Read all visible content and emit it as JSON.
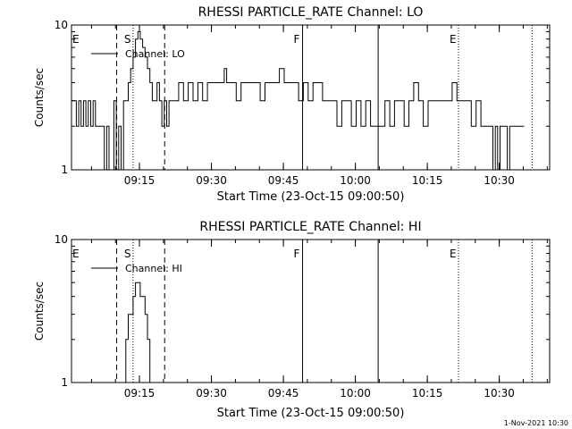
{
  "footer": {
    "stamp": "1-Nov-2021 10:30"
  },
  "chart_data": [
    {
      "type": "line",
      "title": "RHESSI PARTICLE_RATE Channel: LO",
      "xlabel": "Start Time (23-Oct-15 09:00:50)",
      "ylabel": "Counts/sec",
      "y_scale": "log",
      "ylim": [
        1,
        10
      ],
      "xlim": [
        "09:00:50",
        "10:40:30"
      ],
      "ytick_labels": [
        {
          "value": 10,
          "label": "10"
        },
        {
          "value": 1,
          "label": "1"
        }
      ],
      "xtick_labels": [
        {
          "time": "09:15",
          "label": "09:15"
        },
        {
          "time": "09:30",
          "label": "09:30"
        },
        {
          "time": "09:45",
          "label": "09:45"
        },
        {
          "time": "10:00",
          "label": "10:00"
        },
        {
          "time": "10:15",
          "label": "10:15"
        },
        {
          "time": "10:30",
          "label": "10:30"
        }
      ],
      "legend": {
        "placement": "top-left",
        "entries": [
          "Channel: LO"
        ]
      },
      "markers": [
        {
          "time": "09:10:15",
          "label": "",
          "style": "dashed"
        },
        {
          "time": "09:13:40",
          "label": "S",
          "style": "dotted"
        },
        {
          "time": "09:20:15",
          "label": "",
          "style": "dashed"
        },
        {
          "time": "09:49:00",
          "label": "F",
          "style": "solid"
        },
        {
          "time": "10:04:45",
          "label": "",
          "style": "solid"
        },
        {
          "time": "10:21:30",
          "label": "E",
          "style": "dotted"
        },
        {
          "time": "10:36:50",
          "label": "",
          "style": "dotted"
        }
      ],
      "corner_label": "E",
      "series": [
        {
          "points": [
            [
              "09:00:50",
              3
            ],
            [
              "09:01:50",
              2
            ],
            [
              "09:02:20",
              3
            ],
            [
              "09:02:50",
              2
            ],
            [
              "09:03:20",
              3
            ],
            [
              "09:03:50",
              2
            ],
            [
              "09:04:20",
              3
            ],
            [
              "09:04:50",
              2
            ],
            [
              "09:05:20",
              3
            ],
            [
              "09:05:50",
              2
            ],
            [
              "09:07:10",
              2
            ],
            [
              "09:07:40",
              1
            ],
            [
              "09:08:10",
              2
            ],
            [
              "09:08:40",
              1
            ],
            [
              "09:09:40",
              3
            ],
            [
              "09:10:10",
              1
            ],
            [
              "09:10:40",
              2
            ],
            [
              "09:11:10",
              1
            ],
            [
              "09:11:40",
              3
            ],
            [
              "09:12:40",
              4
            ],
            [
              "09:13:10",
              5
            ],
            [
              "09:13:40",
              6
            ],
            [
              "09:14:10",
              8
            ],
            [
              "09:14:40",
              9
            ],
            [
              "09:15:10",
              8
            ],
            [
              "09:15:40",
              7
            ],
            [
              "09:16:10",
              6
            ],
            [
              "09:16:40",
              5
            ],
            [
              "09:17:10",
              4
            ],
            [
              "09:17:40",
              3
            ],
            [
              "09:18:10",
              3
            ],
            [
              "09:18:40",
              4
            ],
            [
              "09:19:10",
              3
            ],
            [
              "09:19:40",
              2
            ],
            [
              "09:20:10",
              3
            ],
            [
              "09:20:40",
              2
            ],
            [
              "09:21:10",
              3
            ],
            [
              "09:22:10",
              3
            ],
            [
              "09:23:10",
              4
            ],
            [
              "09:24:10",
              3
            ],
            [
              "09:25:10",
              4
            ],
            [
              "09:26:10",
              3
            ],
            [
              "09:27:10",
              4
            ],
            [
              "09:28:10",
              3
            ],
            [
              "09:29:10",
              4
            ],
            [
              "09:30:10",
              4
            ],
            [
              "09:31:10",
              4
            ],
            [
              "09:32:10",
              4
            ],
            [
              "09:32:40",
              5
            ],
            [
              "09:33:10",
              4
            ],
            [
              "09:34:10",
              4
            ],
            [
              "09:35:10",
              3
            ],
            [
              "09:36:10",
              4
            ],
            [
              "09:37:10",
              4
            ],
            [
              "09:38:10",
              4
            ],
            [
              "09:39:10",
              4
            ],
            [
              "09:40:10",
              3
            ],
            [
              "09:41:10",
              4
            ],
            [
              "09:42:10",
              4
            ],
            [
              "09:43:10",
              4
            ],
            [
              "09:44:10",
              5
            ],
            [
              "09:45:10",
              4
            ],
            [
              "09:46:10",
              4
            ],
            [
              "09:47:10",
              4
            ],
            [
              "09:48:10",
              3
            ],
            [
              "09:49:10",
              4
            ],
            [
              "09:50:10",
              3
            ],
            [
              "09:51:10",
              4
            ],
            [
              "09:52:10",
              4
            ],
            [
              "09:53:10",
              3
            ],
            [
              "09:54:10",
              3
            ],
            [
              "09:55:10",
              3
            ],
            [
              "09:56:10",
              2
            ],
            [
              "09:57:10",
              3
            ],
            [
              "09:58:10",
              3
            ],
            [
              "09:59:10",
              2
            ],
            [
              "10:00:10",
              3
            ],
            [
              "10:01:10",
              2
            ],
            [
              "10:02:10",
              3
            ],
            [
              "10:03:10",
              2
            ],
            [
              "10:04:10",
              2
            ],
            [
              "10:05:10",
              2
            ],
            [
              "10:06:10",
              3
            ],
            [
              "10:07:10",
              2
            ],
            [
              "10:08:10",
              3
            ],
            [
              "10:09:10",
              3
            ],
            [
              "10:10:10",
              2
            ],
            [
              "10:11:10",
              3
            ],
            [
              "10:12:10",
              4
            ],
            [
              "10:13:10",
              3
            ],
            [
              "10:14:10",
              2
            ],
            [
              "10:15:10",
              3
            ],
            [
              "10:16:10",
              3
            ],
            [
              "10:17:10",
              3
            ],
            [
              "10:18:10",
              3
            ],
            [
              "10:19:10",
              3
            ],
            [
              "10:20:10",
              4
            ],
            [
              "10:21:10",
              3
            ],
            [
              "10:22:10",
              3
            ],
            [
              "10:23:10",
              3
            ],
            [
              "10:24:10",
              2
            ],
            [
              "10:25:10",
              3
            ],
            [
              "10:26:10",
              2
            ],
            [
              "10:27:10",
              2
            ],
            [
              "10:28:10",
              2
            ],
            [
              "10:28:40",
              1
            ],
            [
              "10:29:10",
              2
            ],
            [
              "10:29:40",
              1
            ],
            [
              "10:30:10",
              2
            ],
            [
              "10:31:10",
              2
            ],
            [
              "10:31:40",
              1
            ],
            [
              "10:32:10",
              2
            ],
            [
              "10:33:10",
              2
            ],
            [
              "10:34:10",
              2
            ],
            [
              "10:35:10",
              2
            ]
          ]
        }
      ]
    },
    {
      "type": "line",
      "title": "RHESSI PARTICLE_RATE Channel: HI",
      "xlabel": "Start Time (23-Oct-15 09:00:50)",
      "ylabel": "Counts/sec",
      "y_scale": "log",
      "ylim": [
        1,
        10
      ],
      "xlim": [
        "09:00:50",
        "10:40:30"
      ],
      "ytick_labels": [
        {
          "value": 10,
          "label": "10"
        },
        {
          "value": 1,
          "label": "1"
        }
      ],
      "xtick_labels": [
        {
          "time": "09:15",
          "label": "09:15"
        },
        {
          "time": "09:30",
          "label": "09:30"
        },
        {
          "time": "09:45",
          "label": "09:45"
        },
        {
          "time": "10:00",
          "label": "10:00"
        },
        {
          "time": "10:15",
          "label": "10:15"
        },
        {
          "time": "10:30",
          "label": "10:30"
        }
      ],
      "legend": {
        "placement": "top-left",
        "entries": [
          "Channel: HI"
        ]
      },
      "markers": [
        {
          "time": "09:10:15",
          "label": "",
          "style": "dashed"
        },
        {
          "time": "09:13:40",
          "label": "S",
          "style": "dotted"
        },
        {
          "time": "09:20:15",
          "label": "",
          "style": "dashed"
        },
        {
          "time": "09:49:00",
          "label": "F",
          "style": "solid"
        },
        {
          "time": "10:04:45",
          "label": "",
          "style": "solid"
        },
        {
          "time": "10:21:30",
          "label": "E",
          "style": "dotted"
        },
        {
          "time": "10:36:50",
          "label": "",
          "style": "dotted"
        }
      ],
      "corner_label": "E",
      "series": [
        {
          "points": [
            [
              "09:11:40",
              1
            ],
            [
              "09:12:10",
              2
            ],
            [
              "09:12:40",
              3
            ],
            [
              "09:13:10",
              3
            ],
            [
              "09:13:40",
              4
            ],
            [
              "09:14:10",
              5
            ],
            [
              "09:14:40",
              5
            ],
            [
              "09:15:10",
              4
            ],
            [
              "09:15:40",
              4
            ],
            [
              "09:16:10",
              3
            ],
            [
              "09:16:40",
              2
            ],
            [
              "09:17:10",
              1
            ]
          ]
        }
      ]
    }
  ]
}
